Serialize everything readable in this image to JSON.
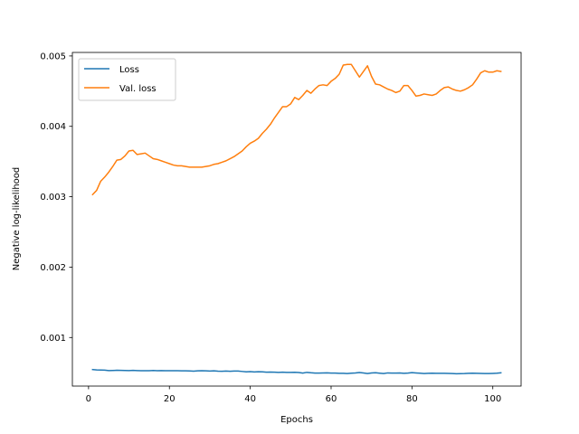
{
  "chart_data": {
    "type": "line",
    "title": "",
    "xlabel": "Epochs",
    "ylabel": "Negative log-likelihood",
    "xlim": [
      -4,
      107
    ],
    "ylim": [
      0.00031,
      0.00505
    ],
    "xticks": [
      0,
      20,
      40,
      60,
      80,
      100
    ],
    "xtick_labels": [
      "0",
      "20",
      "40",
      "60",
      "80",
      "100"
    ],
    "yticks": [
      0.001,
      0.002,
      0.003,
      0.004,
      0.005
    ],
    "ytick_labels": [
      "0.001",
      "0.002",
      "0.003",
      "0.004",
      "0.005"
    ],
    "grid": false,
    "legend_position": "top-left",
    "series": [
      {
        "name": "Loss",
        "color": "#1f77b4",
        "x": [
          1,
          2,
          3,
          4,
          5,
          6,
          7,
          8,
          9,
          10,
          11,
          12,
          13,
          14,
          15,
          16,
          17,
          18,
          19,
          20,
          21,
          22,
          23,
          24,
          25,
          26,
          27,
          28,
          29,
          30,
          31,
          32,
          33,
          34,
          35,
          36,
          37,
          38,
          39,
          40,
          41,
          42,
          43,
          44,
          45,
          46,
          47,
          48,
          49,
          50,
          51,
          52,
          53,
          54,
          55,
          56,
          57,
          58,
          59,
          60,
          61,
          62,
          63,
          64,
          65,
          66,
          67,
          68,
          69,
          70,
          71,
          72,
          73,
          74,
          75,
          76,
          77,
          78,
          79,
          80,
          81,
          82,
          83,
          84,
          85,
          86,
          87,
          88,
          89,
          90,
          91,
          92,
          93,
          94,
          95,
          96,
          97,
          98,
          99,
          100,
          101,
          102
        ],
        "y": [
          0.000545,
          0.00054,
          0.000538,
          0.000536,
          0.00053,
          0.000532,
          0.000534,
          0.000533,
          0.000532,
          0.00053,
          0.000533,
          0.00053,
          0.000528,
          0.000529,
          0.000528,
          0.000531,
          0.000529,
          0.00053,
          0.000528,
          0.000529,
          0.000528,
          0.000529,
          0.000527,
          0.000526,
          0.000525,
          0.000522,
          0.000526,
          0.000529,
          0.000527,
          0.000524,
          0.000526,
          0.000522,
          0.000521,
          0.000523,
          0.000521,
          0.000524,
          0.000523,
          0.000518,
          0.000513,
          0.000516,
          0.000511,
          0.000514,
          0.000512,
          0.000507,
          0.000509,
          0.000508,
          0.000505,
          0.000507,
          0.000505,
          0.000504,
          0.000506,
          0.000503,
          0.000495,
          0.000505,
          0.000499,
          0.000495,
          0.000494,
          0.000497,
          0.000498,
          0.000495,
          0.000494,
          0.000492,
          0.000491,
          0.000488,
          0.000493,
          0.000496,
          0.000503,
          0.000496,
          0.000489,
          0.000496,
          0.000499,
          0.000493,
          0.000488,
          0.000497,
          0.000495,
          0.000494,
          0.000496,
          0.000492,
          0.000495,
          0.000501,
          0.000497,
          0.000493,
          0.000489,
          0.000492,
          0.000493,
          0.000492,
          0.000491,
          0.000491,
          0.00049,
          0.000489,
          0.000485,
          0.000486,
          0.000488,
          0.000492,
          0.000493,
          0.000491,
          0.00049,
          0.000489,
          0.000488,
          0.00049,
          0.000493,
          0.000498
        ]
      },
      {
        "name": "Val. loss",
        "color": "#ff7f0e",
        "x": [
          1,
          2,
          3,
          4,
          5,
          6,
          7,
          8,
          9,
          10,
          11,
          12,
          13,
          14,
          15,
          16,
          17,
          18,
          19,
          20,
          21,
          22,
          23,
          24,
          25,
          26,
          27,
          28,
          29,
          30,
          31,
          32,
          33,
          34,
          35,
          36,
          37,
          38,
          39,
          40,
          41,
          42,
          43,
          44,
          45,
          46,
          47,
          48,
          49,
          50,
          51,
          52,
          53,
          54,
          55,
          56,
          57,
          58,
          59,
          60,
          61,
          62,
          63,
          64,
          65,
          66,
          67,
          68,
          69,
          70,
          71,
          72,
          73,
          74,
          75,
          76,
          77,
          78,
          79,
          80,
          81,
          82,
          83,
          84,
          85,
          86,
          87,
          88,
          89,
          90,
          91,
          92,
          93,
          94,
          95,
          96,
          97,
          98,
          99,
          100,
          101,
          102
        ],
        "y": [
          0.00303,
          0.00309,
          0.00322,
          0.00328,
          0.00335,
          0.00343,
          0.00352,
          0.00353,
          0.00358,
          0.00365,
          0.00366,
          0.0036,
          0.00361,
          0.00362,
          0.00358,
          0.00354,
          0.00353,
          0.00351,
          0.00349,
          0.00347,
          0.00345,
          0.00344,
          0.00344,
          0.00343,
          0.00342,
          0.00342,
          0.00342,
          0.00342,
          0.00343,
          0.00344,
          0.00346,
          0.00347,
          0.00349,
          0.00351,
          0.00354,
          0.00357,
          0.00361,
          0.00365,
          0.00371,
          0.00376,
          0.00379,
          0.00383,
          0.0039,
          0.00396,
          0.00403,
          0.00412,
          0.0042,
          0.00428,
          0.00428,
          0.00432,
          0.00441,
          0.00438,
          0.00444,
          0.00451,
          0.00447,
          0.00453,
          0.00458,
          0.00459,
          0.00458,
          0.00464,
          0.00468,
          0.00474,
          0.00487,
          0.00488,
          0.00488,
          0.00479,
          0.0047,
          0.00478,
          0.00486,
          0.00471,
          0.0046,
          0.00459,
          0.00456,
          0.00453,
          0.00451,
          0.00448,
          0.0045,
          0.00458,
          0.00458,
          0.00451,
          0.00443,
          0.00444,
          0.00446,
          0.00445,
          0.00444,
          0.00446,
          0.00451,
          0.00455,
          0.00456,
          0.00453,
          0.00451,
          0.0045,
          0.00452,
          0.00455,
          0.00459,
          0.00467,
          0.00476,
          0.00479,
          0.00477,
          0.00477,
          0.00479,
          0.00478
        ]
      }
    ]
  }
}
